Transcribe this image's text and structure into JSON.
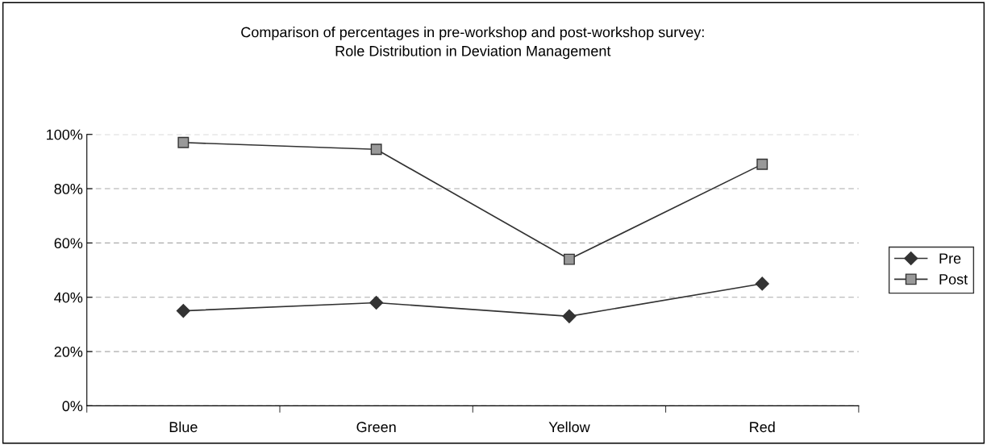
{
  "chart_data": {
    "type": "line",
    "title": "Comparison of percentages in pre-workshop and post-workshop survey:\nRole Distribution in Deviation Management",
    "categories": [
      "Blue",
      "Green",
      "Yellow",
      "Red"
    ],
    "series": [
      {
        "name": "Pre",
        "color": "#333333",
        "marker": "diamond",
        "values": [
          35,
          38,
          33,
          45
        ]
      },
      {
        "name": "Post",
        "color": "#999999",
        "marker": "square",
        "values": [
          97,
          94.5,
          54,
          89
        ]
      }
    ],
    "ylim": [
      0,
      100
    ],
    "yticks": [
      {
        "value": 0,
        "label": "0%"
      },
      {
        "value": 20,
        "label": "20%"
      },
      {
        "value": 40,
        "label": "40%"
      },
      {
        "value": 60,
        "label": "60%"
      },
      {
        "value": 80,
        "label": "80%"
      },
      {
        "value": 100,
        "label": "100%"
      }
    ],
    "grid": "y",
    "legend": "right",
    "line_style": "solid"
  }
}
